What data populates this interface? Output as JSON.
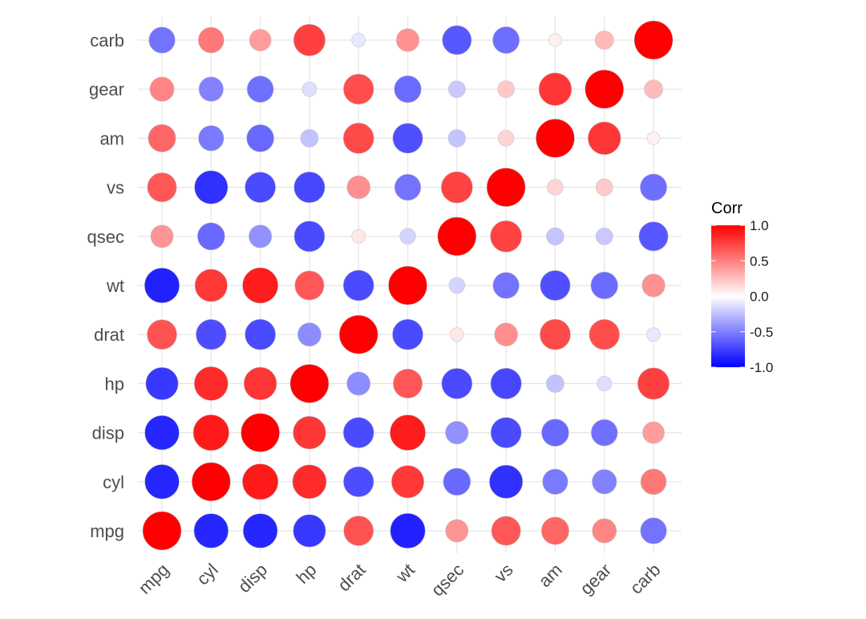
{
  "chart_data": {
    "type": "heatmap",
    "style": "circle correlation matrix",
    "variables": [
      "mpg",
      "cyl",
      "disp",
      "hp",
      "drat",
      "wt",
      "qsec",
      "vs",
      "am",
      "gear",
      "carb"
    ],
    "matrix": [
      [
        1.0,
        -0.85,
        -0.85,
        -0.78,
        0.68,
        -0.87,
        0.42,
        0.66,
        0.6,
        0.48,
        -0.55
      ],
      [
        -0.85,
        1.0,
        0.9,
        0.83,
        -0.7,
        0.78,
        -0.59,
        -0.81,
        -0.52,
        -0.49,
        0.53
      ],
      [
        -0.85,
        0.9,
        1.0,
        0.79,
        -0.71,
        0.89,
        -0.43,
        -0.71,
        -0.59,
        -0.56,
        0.39
      ],
      [
        -0.78,
        0.83,
        0.79,
        1.0,
        -0.45,
        0.66,
        -0.71,
        -0.72,
        -0.24,
        -0.13,
        0.75
      ],
      [
        0.68,
        -0.7,
        -0.71,
        -0.45,
        1.0,
        -0.71,
        0.09,
        0.44,
        0.71,
        0.7,
        -0.09
      ],
      [
        -0.87,
        0.78,
        0.89,
        0.66,
        -0.71,
        1.0,
        -0.17,
        -0.55,
        -0.69,
        -0.58,
        0.43
      ],
      [
        0.42,
        -0.59,
        -0.43,
        -0.71,
        0.09,
        -0.17,
        1.0,
        0.74,
        -0.23,
        -0.21,
        -0.66
      ],
      [
        0.66,
        -0.81,
        -0.71,
        -0.72,
        0.44,
        -0.55,
        0.74,
        1.0,
        0.17,
        0.21,
        -0.57
      ],
      [
        0.6,
        -0.52,
        -0.59,
        -0.24,
        0.71,
        -0.69,
        -0.23,
        0.17,
        1.0,
        0.79,
        0.06
      ],
      [
        0.48,
        -0.49,
        -0.56,
        -0.13,
        0.7,
        -0.58,
        -0.21,
        0.21,
        0.79,
        1.0,
        0.27
      ],
      [
        -0.55,
        0.53,
        0.39,
        0.75,
        -0.09,
        0.43,
        -0.66,
        -0.57,
        0.06,
        0.27,
        1.0
      ]
    ],
    "color_scale": {
      "low": "#0000FF",
      "mid": "#FFFFFF",
      "high": "#FF0000",
      "limits": [
        -1,
        1
      ]
    },
    "legend": {
      "title": "Corr",
      "ticks": [
        "1.0",
        "0.5",
        "0.0",
        "-0.5",
        "-1.0"
      ],
      "tick_values": [
        1.0,
        0.5,
        0.0,
        -0.5,
        -1.0
      ],
      "position": "right"
    },
    "grid": true
  }
}
